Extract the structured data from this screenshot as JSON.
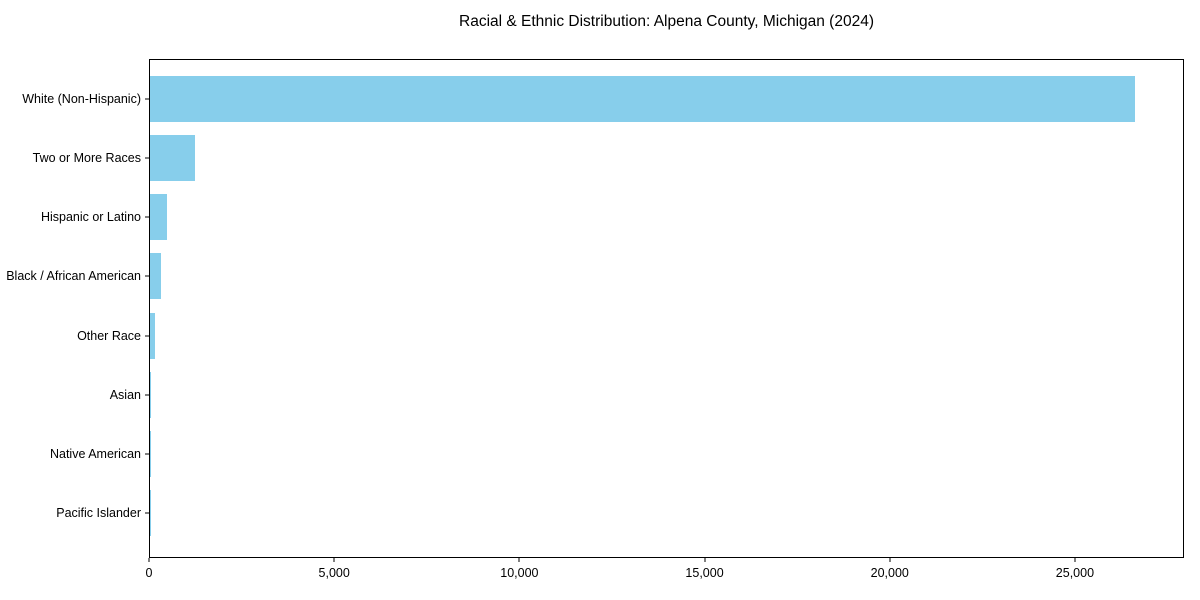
{
  "title": "Racial & Ethnic Distribution: Alpena County, Michigan (2024)",
  "chart_data": {
    "type": "bar",
    "orientation": "horizontal",
    "title": "Racial & Ethnic Distribution: Alpena County, Michigan (2024)",
    "categories": [
      "White (Non-Hispanic)",
      "Two or More Races",
      "Hispanic or Latino",
      "Black / African American",
      "Other Race",
      "Asian",
      "Native American",
      "Pacific Islander"
    ],
    "values": [
      26650,
      1220,
      470,
      300,
      135,
      40,
      20,
      5
    ],
    "xlabel": "",
    "ylabel": "",
    "xlim": [
      0,
      27945
    ],
    "x_ticks": [
      0,
      5000,
      10000,
      15000,
      20000,
      25000
    ],
    "x_tick_labels": [
      "0",
      "5,000",
      "10,000",
      "15,000",
      "20,000",
      "25,000"
    ],
    "grid": false,
    "legend": false,
    "bar_color": "#87CEEB",
    "axis_color": "#000000",
    "background_color": "#ffffff"
  }
}
